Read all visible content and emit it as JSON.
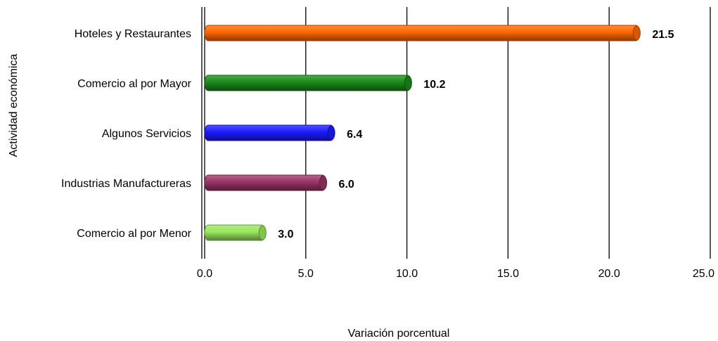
{
  "chart_data": {
    "type": "bar",
    "orientation": "horizontal",
    "categories": [
      "Hoteles y Restaurantes",
      "Comercio al por Mayor",
      "Algunos Servicios",
      "Industrias Manufactureras",
      "Comercio al por Menor"
    ],
    "values": [
      21.5,
      10.2,
      6.4,
      6.0,
      3.0
    ],
    "value_labels": [
      "21.5",
      "10.2",
      "6.4",
      "6.0",
      "3.0"
    ],
    "colors": [
      "#ff6600",
      "#1a8a1a",
      "#1a1aff",
      "#993366",
      "#99e65c"
    ],
    "xlabel": "Variación porcentual",
    "ylabel": "Actividad económica",
    "xlim": [
      0,
      25
    ],
    "xticks": [
      "0.0",
      "5.0",
      "10.0",
      "15.0",
      "20.0",
      "25.0"
    ],
    "grid": "vertical",
    "legend": "none"
  }
}
